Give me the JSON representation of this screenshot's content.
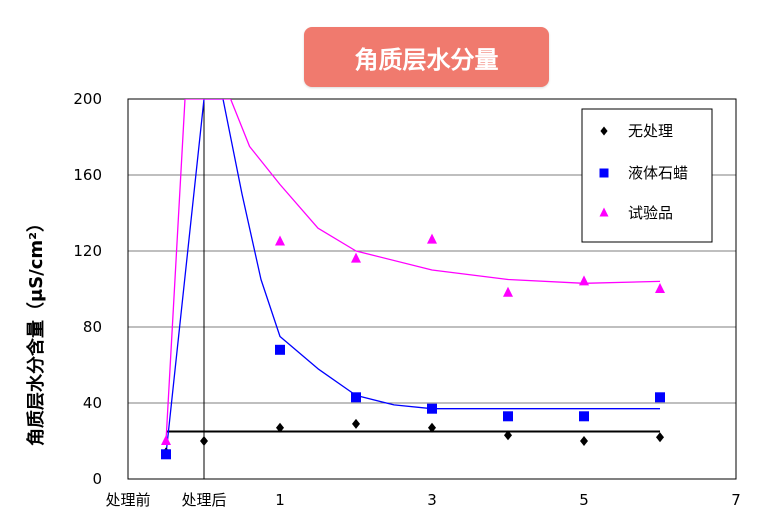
{
  "chart_data": {
    "type": "scatter",
    "title": "角质层水分量",
    "ylabel": "角质层水分含量（μS/cm²）",
    "xlabel": "",
    "ylim": [
      0,
      200
    ],
    "xlim": [
      -1,
      7
    ],
    "yticks": [
      0,
      40,
      80,
      120,
      160,
      200
    ],
    "xticks": [
      {
        "x": -1,
        "label": "处理前"
      },
      {
        "x": 0,
        "label": "处理后"
      },
      {
        "x": 1,
        "label": "1"
      },
      {
        "x": 3,
        "label": "3"
      },
      {
        "x": 5,
        "label": "5"
      },
      {
        "x": 7,
        "label": "7"
      }
    ],
    "grid": "horizontal",
    "legend_position": "top-right",
    "series": [
      {
        "name": "无处理",
        "marker": "diamond",
        "color": "#000000",
        "x": [
          -0.5,
          0,
          1,
          2,
          3,
          4,
          5,
          6
        ],
        "values": [
          14,
          20,
          27,
          29,
          27,
          23,
          20,
          22
        ],
        "trend_x": [
          -0.5,
          6
        ],
        "trend_y": [
          25,
          25
        ]
      },
      {
        "name": "液体石蜡",
        "marker": "square",
        "color": "#0000ff",
        "x": [
          -0.5,
          1,
          2,
          3,
          4,
          5,
          6
        ],
        "values": [
          13,
          68,
          43,
          37,
          33,
          33,
          43
        ],
        "trend_x": [
          -0.5,
          0,
          0.25,
          0.5,
          0.75,
          1,
          1.5,
          2,
          2.5,
          3,
          4,
          5,
          6
        ],
        "trend_y": [
          13,
          200,
          200,
          150,
          105,
          75,
          58,
          44,
          39,
          37,
          37,
          37,
          37
        ]
      },
      {
        "name": "试验品",
        "marker": "triangle",
        "color": "#ff00ff",
        "x": [
          -0.5,
          1,
          2,
          3,
          4,
          5,
          6
        ],
        "values": [
          20,
          125,
          116,
          126,
          98,
          104,
          100
        ],
        "trend_x": [
          -0.5,
          -0.25,
          0.35,
          0.6,
          1,
          1.5,
          2,
          3,
          4,
          5,
          6
        ],
        "trend_y": [
          20,
          200,
          200,
          175,
          155,
          132,
          120,
          110,
          105,
          103,
          104
        ]
      }
    ]
  }
}
